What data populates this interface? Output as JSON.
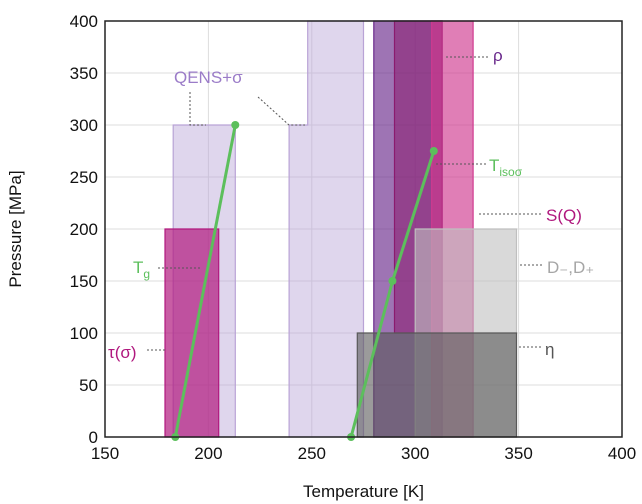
{
  "chart_data": {
    "type": "area",
    "xlabel": "Temperature [K]",
    "ylabel": "Pressure [MPa]",
    "xlim": [
      150,
      400
    ],
    "ylim": [
      0,
      400
    ],
    "xticks": [
      150,
      200,
      250,
      300,
      350,
      400
    ],
    "yticks": [
      0,
      50,
      100,
      150,
      200,
      250,
      300,
      350,
      400
    ],
    "grid": true,
    "regions": [
      {
        "name": "QENS+σ",
        "color": "#b9a3d6",
        "opacity": 0.45,
        "polygon": [
          [
            183,
            0
          ],
          [
            213,
            0
          ],
          [
            213,
            300
          ],
          [
            183,
            300
          ]
        ]
      },
      {
        "name": "QENS+σ",
        "color": "#b9a3d6",
        "opacity": 0.45,
        "polygon": [
          [
            239,
            0
          ],
          [
            275,
            0
          ],
          [
            275,
            400
          ],
          [
            248,
            400
          ],
          [
            248,
            300
          ],
          [
            239,
            300
          ]
        ]
      },
      {
        "name": "τ(σ)",
        "color": "#b0187e",
        "opacity": 0.7,
        "polygon": [
          [
            179,
            0
          ],
          [
            205,
            0
          ],
          [
            205,
            200
          ],
          [
            179,
            200
          ]
        ]
      },
      {
        "name": "ρ",
        "color": "#6a2a8c",
        "opacity": 0.65,
        "polygon": [
          [
            280,
            0
          ],
          [
            313,
            0
          ],
          [
            313,
            400
          ],
          [
            280,
            400
          ]
        ]
      },
      {
        "name": "ρ",
        "color": "#8b1a6e",
        "opacity": 0.55,
        "polygon": [
          [
            290,
            100
          ],
          [
            313,
            100
          ],
          [
            313,
            400
          ],
          [
            290,
            400
          ]
        ]
      },
      {
        "name": "S(Q)",
        "color": "#d0398f",
        "opacity": 0.65,
        "polygon": [
          [
            308,
            0
          ],
          [
            328,
            0
          ],
          [
            328,
            400
          ],
          [
            308,
            400
          ]
        ]
      },
      {
        "name": "D₋,D₊",
        "color": "#bfbfbf",
        "opacity": 0.6,
        "polygon": [
          [
            300,
            0
          ],
          [
            349,
            0
          ],
          [
            349,
            200
          ],
          [
            300,
            200
          ]
        ]
      },
      {
        "name": "η",
        "color": "#595959",
        "opacity": 0.6,
        "polygon": [
          [
            272,
            0
          ],
          [
            349,
            0
          ],
          [
            349,
            100
          ],
          [
            272,
            100
          ]
        ]
      }
    ],
    "lines": [
      {
        "name": "Tg",
        "color": "#5cbf5c",
        "points": [
          [
            184,
            0
          ],
          [
            213,
            300
          ]
        ]
      },
      {
        "name": "Tisoσ",
        "color": "#5cbf5c",
        "points": [
          [
            269,
            0
          ],
          [
            289,
            150
          ],
          [
            309,
            275
          ]
        ]
      }
    ],
    "annotations": [
      {
        "text": "QENS+σ",
        "color": "#9b7cc8"
      },
      {
        "text": "ρ",
        "color": "#6a2a8c"
      },
      {
        "text": "S(Q)",
        "color": "#b0187e"
      },
      {
        "text": "D₋,D₊",
        "color": "#a6a6a6"
      },
      {
        "text": "η",
        "color": "#555555"
      },
      {
        "text": "τ(σ)",
        "color": "#b0187e"
      },
      {
        "text": "Tg",
        "main": "T",
        "sub": "g",
        "color": "#5cbf5c"
      },
      {
        "text": "Tisoσ",
        "main": "T",
        "sub": "isoσ",
        "color": "#5cbf5c"
      }
    ]
  }
}
